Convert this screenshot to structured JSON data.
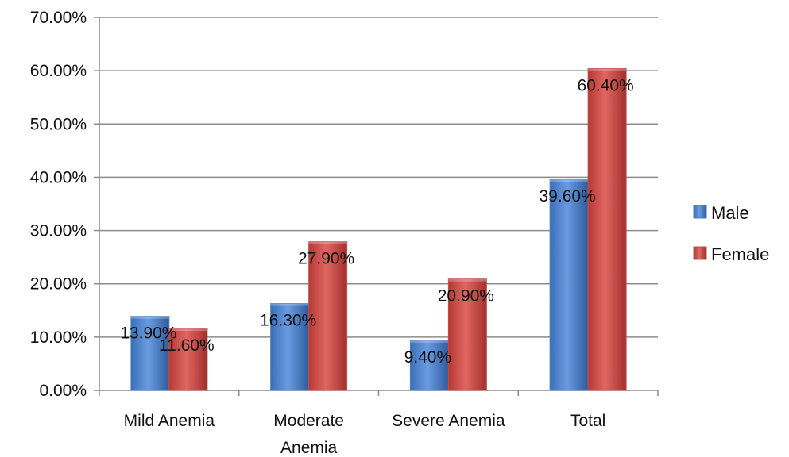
{
  "chart_data": {
    "type": "bar",
    "title": "",
    "xlabel": "",
    "ylabel": "",
    "categories": [
      [
        "Mild Anemia"
      ],
      [
        "Moderate",
        "Anemia"
      ],
      [
        "Severe Anemia"
      ],
      [
        "Total"
      ]
    ],
    "series": [
      {
        "name": "Male",
        "color": "#4F81BD",
        "values": [
          13.9,
          16.3,
          9.4,
          39.6
        ],
        "labels": [
          "13.90%",
          "16.30%",
          "9.40%",
          "39.60%"
        ]
      },
      {
        "name": "Female",
        "color": "#C0504D",
        "values": [
          11.6,
          27.9,
          20.9,
          60.4
        ],
        "labels": [
          "11.60%",
          "27.90%",
          "20.90%",
          "60.40%"
        ]
      }
    ],
    "ylim": [
      0,
      70
    ],
    "yticks": [
      0,
      10,
      20,
      30,
      40,
      50,
      60,
      70
    ],
    "ytick_labels": [
      "0.00%",
      "10.00%",
      "20.00%",
      "30.00%",
      "40.00%",
      "50.00%",
      "60.00%",
      "70.00%"
    ],
    "grid": true,
    "legend_position": "right"
  }
}
